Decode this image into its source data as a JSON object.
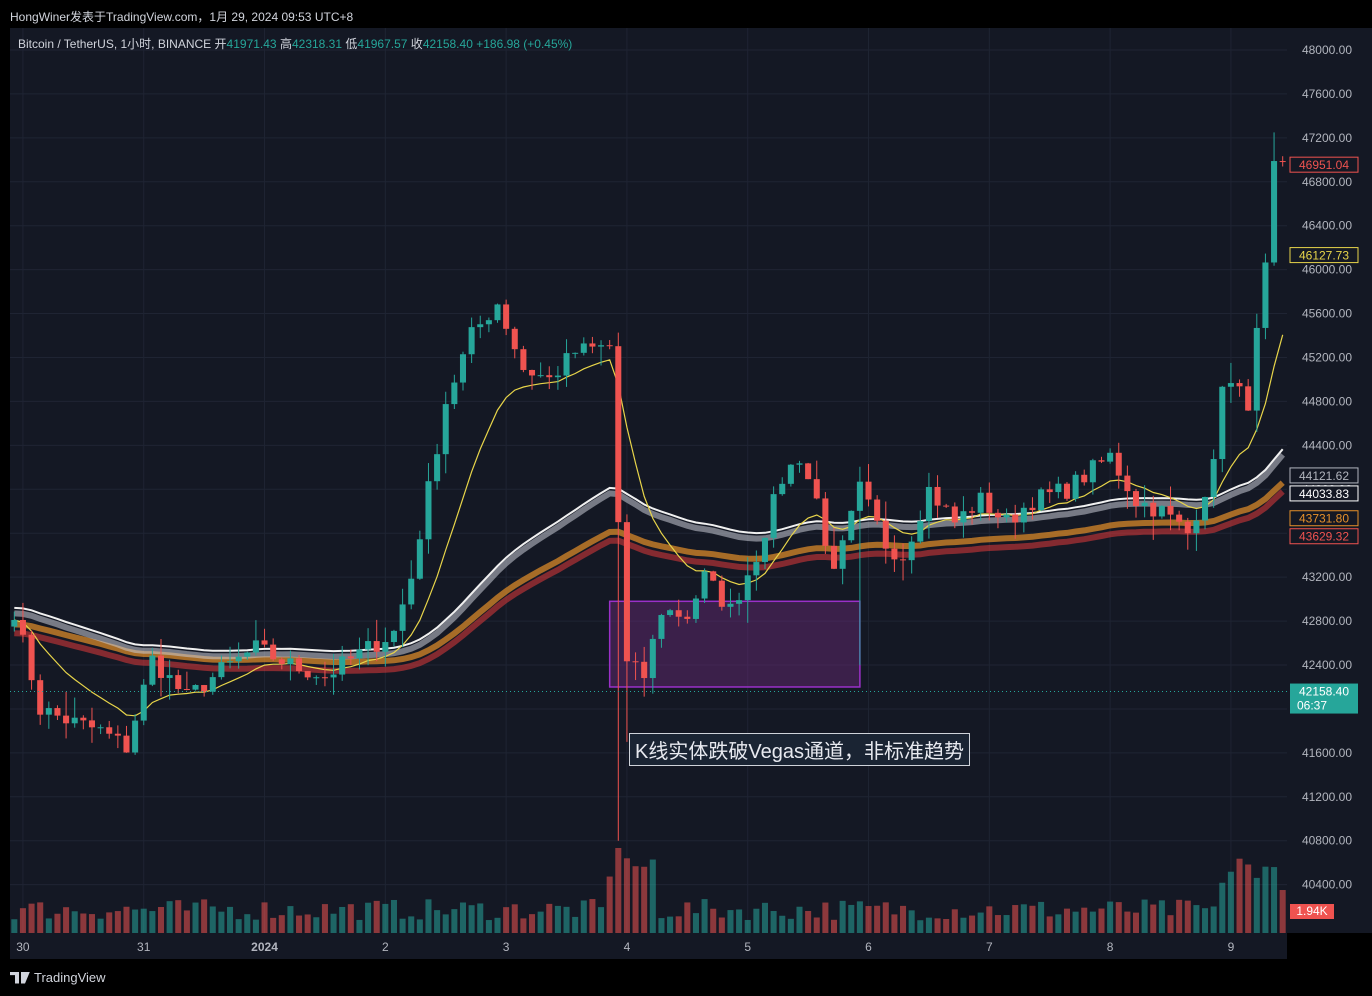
{
  "header": {
    "publish_line": "HongWiner发表于TradingView.com，1月 29, 2024 09:53 UTC+8"
  },
  "legend": {
    "symbol": "Bitcoin / TetherUS, 1小时, BINANCE",
    "open_label": "开",
    "open": "41971.43",
    "high_label": "高",
    "high": "42318.31",
    "low_label": "低",
    "low": "41967.57",
    "close_label": "收",
    "close": "42158.40",
    "change": "+186.98 (+0.45%)"
  },
  "annotation": {
    "text": "K线实体跌破Vegas通道，非标准趋势"
  },
  "brand": {
    "text": "TradingView"
  },
  "colors": {
    "background": "#141824",
    "up": "#26a69a",
    "down": "#ef5350",
    "grid": "#1f2433",
    "ema12": "#e8d54a",
    "ema144": "#c8ccd6",
    "ema169": "#f0f0f0",
    "ema576": "#e5902a",
    "ema676": "#e03a3a",
    "box_fill": "#6a2a7a",
    "box_stroke": "#9b30c9"
  },
  "chart_data": {
    "type": "candlestick",
    "interval": "1h",
    "y_axis": {
      "min": 39960,
      "max": 48200,
      "ticks": [
        "48000.00",
        "47600.00",
        "47200.00",
        "46800.00",
        "46400.00",
        "46000.00",
        "45600.00",
        "45200.00",
        "44800.00",
        "44400.00",
        "44000.00",
        "43600.00",
        "43200.00",
        "42800.00",
        "42400.00",
        "42000.00",
        "41600.00",
        "41200.00",
        "40800.00",
        "40400.00"
      ]
    },
    "x_axis": {
      "labels": [
        "30",
        "31",
        "2024",
        "2",
        "3",
        "4",
        "5",
        "6",
        "7",
        "8",
        "9"
      ]
    },
    "price_labels": {
      "ema_fast": "46951.04",
      "ema_12": "46127.73",
      "ema_144": "44121.62",
      "ema_169": "44033.83",
      "ema_576": "43731.80",
      "ema_676": "43629.32",
      "last_price": "42158.40",
      "countdown": "06:37",
      "volume": "1.94K"
    },
    "zone": {
      "start_index": 69,
      "end_index": 98,
      "top": 42980,
      "bottom": 42200
    },
    "anchors": [
      [
        0,
        42900
      ],
      [
        3,
        42000
      ],
      [
        6,
        41900
      ],
      [
        10,
        41800
      ],
      [
        13,
        41650
      ],
      [
        16,
        42450
      ],
      [
        20,
        42100
      ],
      [
        24,
        42350
      ],
      [
        28,
        42550
      ],
      [
        32,
        42400
      ],
      [
        36,
        42300
      ],
      [
        40,
        42500
      ],
      [
        44,
        42700
      ],
      [
        46,
        43200
      ],
      [
        50,
        44800
      ],
      [
        53,
        45400
      ],
      [
        56,
        45700
      ],
      [
        59,
        45100
      ],
      [
        62,
        45000
      ],
      [
        65,
        45250
      ],
      [
        69,
        45300
      ],
      [
        70,
        43700
      ],
      [
        71,
        42400
      ],
      [
        73,
        42300
      ],
      [
        75,
        42900
      ],
      [
        78,
        42850
      ],
      [
        80,
        43200
      ],
      [
        83,
        42900
      ],
      [
        86,
        43400
      ],
      [
        89,
        44100
      ],
      [
        91,
        44300
      ],
      [
        93,
        43900
      ],
      [
        95,
        43200
      ],
      [
        98,
        44000
      ],
      [
        101,
        43500
      ],
      [
        103,
        43400
      ],
      [
        106,
        44000
      ],
      [
        109,
        43700
      ],
      [
        112,
        43900
      ],
      [
        115,
        43700
      ],
      [
        118,
        43900
      ],
      [
        122,
        44000
      ],
      [
        127,
        44300
      ],
      [
        130,
        43900
      ],
      [
        133,
        43800
      ],
      [
        136,
        43600
      ],
      [
        139,
        44200
      ],
      [
        140,
        45000
      ],
      [
        143,
        44800
      ],
      [
        145,
        46000
      ],
      [
        146,
        46900
      ]
    ],
    "series": [
      {
        "name": "EMA12"
      },
      {
        "name": "EMA144"
      },
      {
        "name": "EMA169"
      },
      {
        "name": "EMA576"
      },
      {
        "name": "EMA676"
      }
    ]
  }
}
